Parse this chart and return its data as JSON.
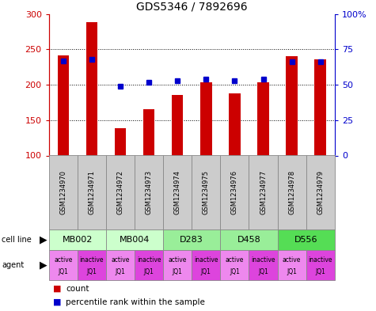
{
  "title": "GDS5346 / 7892696",
  "samples": [
    "GSM1234970",
    "GSM1234971",
    "GSM1234972",
    "GSM1234973",
    "GSM1234974",
    "GSM1234975",
    "GSM1234976",
    "GSM1234977",
    "GSM1234978",
    "GSM1234979"
  ],
  "counts": [
    242,
    288,
    139,
    165,
    186,
    204,
    188,
    203,
    240,
    236
  ],
  "percentiles": [
    67,
    68,
    49,
    52,
    53,
    54,
    53,
    54,
    66,
    66
  ],
  "cell_lines": [
    {
      "label": "MB002",
      "cols": [
        0,
        1
      ],
      "color": "#ccffcc"
    },
    {
      "label": "MB004",
      "cols": [
        2,
        3
      ],
      "color": "#ccffcc"
    },
    {
      "label": "D283",
      "cols": [
        4,
        5
      ],
      "color": "#99ee99"
    },
    {
      "label": "D458",
      "cols": [
        6,
        7
      ],
      "color": "#99ee99"
    },
    {
      "label": "D556",
      "cols": [
        8,
        9
      ],
      "color": "#55dd55"
    }
  ],
  "agents": [
    "active",
    "inactive",
    "active",
    "inactive",
    "active",
    "inactive",
    "active",
    "inactive",
    "active",
    "inactive"
  ],
  "agent_sub": [
    "JQ1",
    "JQ1",
    "JQ1",
    "JQ1",
    "JQ1",
    "JQ1",
    "JQ1",
    "JQ1",
    "JQ1",
    "JQ1"
  ],
  "agent_active_color": "#ee88ee",
  "agent_inactive_color": "#dd44dd",
  "bar_color": "#cc0000",
  "dot_color": "#0000cc",
  "ymin": 100,
  "ymax": 300,
  "yticks": [
    100,
    150,
    200,
    250,
    300
  ],
  "right_yticks": [
    0,
    25,
    50,
    75,
    100
  ],
  "grid_color": "#000000",
  "sample_bg_color": "#cccccc",
  "sample_border_color": "#888888",
  "legend_count_color": "#cc0000",
  "legend_pct_color": "#0000cc",
  "bar_width": 0.4
}
